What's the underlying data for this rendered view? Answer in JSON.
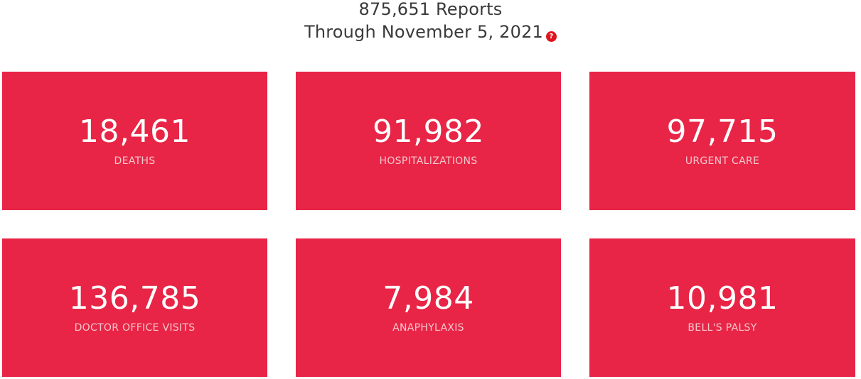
{
  "header": {
    "reports_line": "875,651 Reports",
    "through_line": "Through November 5, 2021",
    "help_icon": "?"
  },
  "colors": {
    "card_background": "#e82546",
    "help_icon": "#e0141e",
    "text": "#3a3a3a"
  },
  "stats": [
    {
      "value": "18,461",
      "label": "DEATHS"
    },
    {
      "value": "91,982",
      "label": "HOSPITALIZATIONS"
    },
    {
      "value": "97,715",
      "label": "URGENT CARE"
    },
    {
      "value": "136,785",
      "label": "DOCTOR OFFICE VISITS"
    },
    {
      "value": "7,984",
      "label": "ANAPHYLAXIS"
    },
    {
      "value": "10,981",
      "label": "BELL'S PALSY"
    }
  ]
}
